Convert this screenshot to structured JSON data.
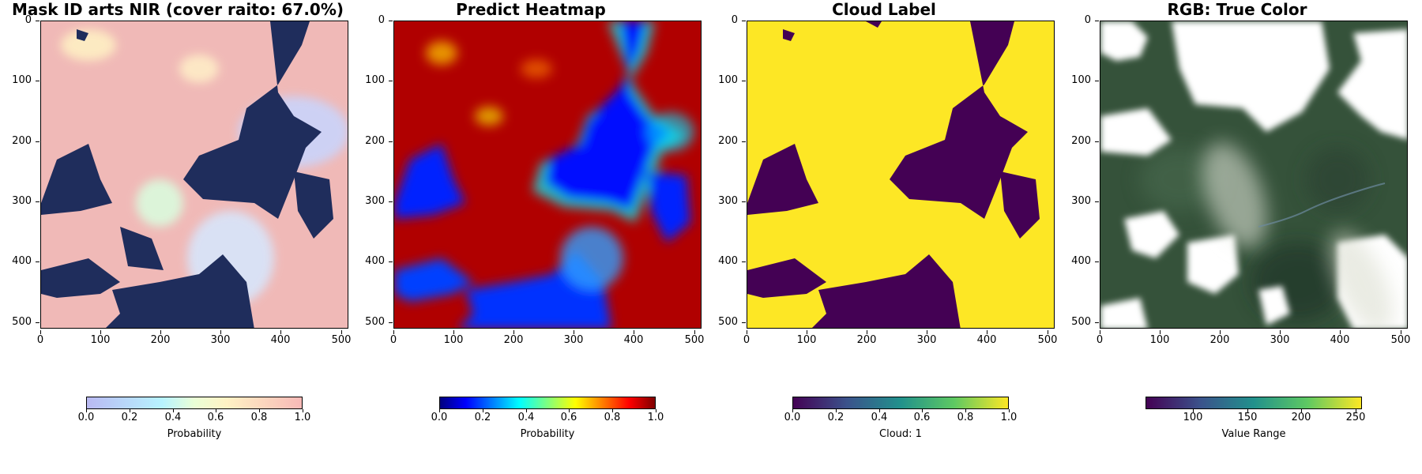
{
  "panels": [
    {
      "title": "Mask ID arts NIR (cover raito: 67.0%)",
      "colorbar_label": "Probability",
      "colorbar_ticks": [
        "0.0",
        "0.2",
        "0.4",
        "0.6",
        "0.8",
        "1.0"
      ],
      "colorbar_range": [
        0.0,
        1.0
      ],
      "colormap": "pastel-overlay"
    },
    {
      "title": "Predict Heatmap",
      "colorbar_label": "Probability",
      "colorbar_ticks": [
        "0.0",
        "0.2",
        "0.4",
        "0.6",
        "0.8",
        "1.0"
      ],
      "colorbar_range": [
        0.0,
        1.0
      ],
      "colormap": "jet"
    },
    {
      "title": "Cloud Label",
      "colorbar_label": "Cloud: 1",
      "colorbar_ticks": [
        "0.0",
        "0.2",
        "0.4",
        "0.6",
        "0.8",
        "1.0"
      ],
      "colorbar_range": [
        0.0,
        1.0
      ],
      "colormap": "viridis"
    },
    {
      "title": "RGB: True Color",
      "colorbar_label": "Value Range",
      "colorbar_ticks": [
        "100",
        "150",
        "200",
        "250"
      ],
      "colorbar_range": [
        58,
        255
      ],
      "colormap": "viridis"
    }
  ],
  "axes": {
    "y_ticks": [
      "0",
      "100",
      "200",
      "300",
      "400",
      "500"
    ],
    "x_ticks": [
      "0",
      "100",
      "200",
      "300",
      "400",
      "500"
    ],
    "extent": [
      0,
      512
    ]
  },
  "colors": {
    "mask_clear": "#1f2d5c",
    "mask_cloud": "#f1b6b6",
    "mask_soft": "#c8d8ff",
    "jet_low": "#0000ff",
    "jet_high": "#b00000",
    "label_cloud": "#fde725",
    "label_clear": "#440154",
    "rgb_veg": "#2f4f2f",
    "rgb_cloud": "#ffffff"
  }
}
